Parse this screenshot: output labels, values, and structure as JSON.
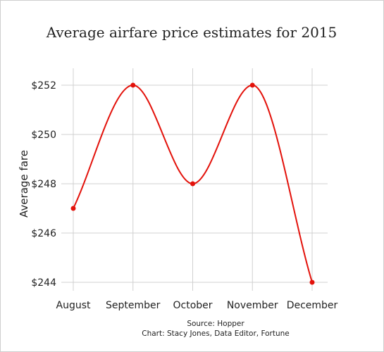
{
  "chart_data": {
    "type": "line",
    "title": "Average airfare price estimates for 2015",
    "xlabel": "",
    "ylabel": "Average fare",
    "categories": [
      "August",
      "September",
      "October",
      "November",
      "December"
    ],
    "series": [
      {
        "values": [
          247,
          252,
          248,
          252,
          244
        ],
        "color": "#e3120b"
      }
    ],
    "ylim": [
      244,
      252
    ],
    "yticks": [
      244,
      246,
      248,
      250,
      252
    ],
    "ytick_labels": [
      "$244",
      "$246",
      "$248",
      "$250",
      "$252"
    ],
    "smooth": true,
    "grid": true,
    "grid_color": "#d0d0d0",
    "source": "Source: Hopper",
    "credit": "Chart: Stacy Jones, Data Editor, Fortune"
  }
}
